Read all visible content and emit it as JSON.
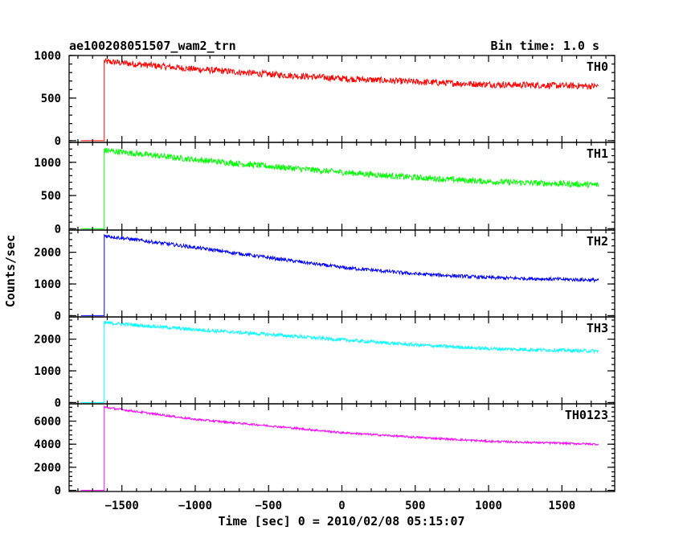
{
  "chart_data": {
    "type": "line",
    "title": "ae100208051507_wam2_trn",
    "bin_time_label": "Bin time: 1.0 s",
    "ylabel": "Counts/sec",
    "xlabel": "Time [sec] 0 = 2010/02/08 05:15:07",
    "xlim": [
      -1860,
      1860
    ],
    "xticks": [
      -1500,
      -1000,
      -500,
      0,
      500,
      1000,
      1500
    ],
    "x_start": -1620,
    "x_end": 1750,
    "panels": [
      {
        "name": "TH0",
        "color": "#ff0000",
        "ylim": [
          -20,
          1000
        ],
        "yticks": [
          0,
          500,
          1000
        ],
        "pre_level": 0,
        "curve": [
          [
            -1620,
            930
          ],
          [
            -1000,
            840
          ],
          [
            -500,
            780
          ],
          [
            0,
            730
          ],
          [
            500,
            690
          ],
          [
            1000,
            660
          ],
          [
            1750,
            640
          ]
        ],
        "noise": 38
      },
      {
        "name": "TH1",
        "color": "#00ff00",
        "ylim": [
          -20,
          1300
        ],
        "yticks": [
          0,
          500,
          1000
        ],
        "pre_level": 0,
        "curve": [
          [
            -1620,
            1180
          ],
          [
            -1000,
            1040
          ],
          [
            -500,
            940
          ],
          [
            0,
            850
          ],
          [
            500,
            770
          ],
          [
            1000,
            710
          ],
          [
            1750,
            660
          ]
        ],
        "noise": 45
      },
      {
        "name": "TH2",
        "color": "#0000ff",
        "ylim": [
          -40,
          2700
        ],
        "yticks": [
          0,
          1000,
          2000
        ],
        "pre_level": 0,
        "curve": [
          [
            -1620,
            2520
          ],
          [
            -1000,
            2150
          ],
          [
            -500,
            1830
          ],
          [
            0,
            1520
          ],
          [
            500,
            1320
          ],
          [
            1000,
            1200
          ],
          [
            1750,
            1120
          ]
        ],
        "noise": 55
      },
      {
        "name": "TH3",
        "color": "#00ffff",
        "ylim": [
          -40,
          2700
        ],
        "yticks": [
          0,
          1000,
          2000
        ],
        "pre_level": 0,
        "curve": [
          [
            -1620,
            2520
          ],
          [
            -1000,
            2300
          ],
          [
            -500,
            2150
          ],
          [
            0,
            1980
          ],
          [
            500,
            1820
          ],
          [
            1000,
            1700
          ],
          [
            1750,
            1620
          ]
        ],
        "noise": 55
      },
      {
        "name": "TH0123",
        "color": "#ff00ff",
        "ylim": [
          -100,
          7500
        ],
        "yticks": [
          0,
          2000,
          4000,
          6000
        ],
        "pre_level": 0,
        "curve": [
          [
            -1620,
            7200
          ],
          [
            -1000,
            6150
          ],
          [
            -500,
            5600
          ],
          [
            0,
            5000
          ],
          [
            500,
            4600
          ],
          [
            1000,
            4250
          ],
          [
            1750,
            4000
          ]
        ],
        "noise": 90
      }
    ]
  }
}
